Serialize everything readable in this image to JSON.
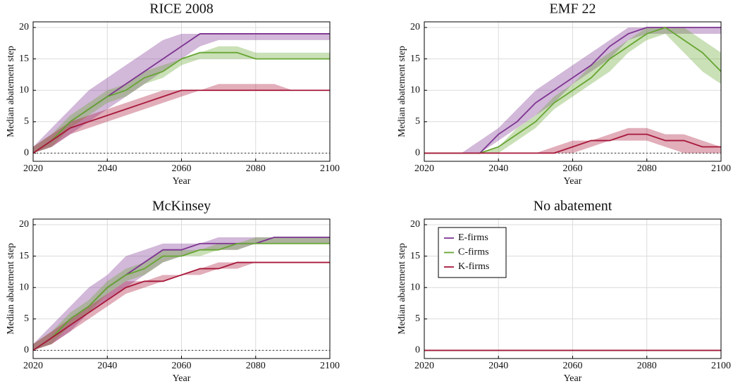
{
  "chart_data": [
    {
      "type": "line",
      "title": "RICE 2008",
      "x_label": "Year",
      "y_label": "Median abatement step",
      "x": [
        2020,
        2025,
        2030,
        2035,
        2040,
        2045,
        2050,
        2055,
        2060,
        2065,
        2070,
        2075,
        2080,
        2085,
        2090,
        2095,
        2100
      ],
      "xlim": [
        2020,
        2100
      ],
      "xticks": [
        2020,
        2040,
        2060,
        2080,
        2100
      ],
      "ylim": [
        -1.3,
        20.9
      ],
      "yticks": [
        0,
        5,
        10,
        15,
        20
      ],
      "grid": true,
      "zero_line": true,
      "series": [
        {
          "name": "E-firms",
          "color": "#7d3591",
          "values": [
            0,
            2,
            5,
            7,
            9,
            11,
            13,
            15,
            17,
            19,
            19,
            19,
            19,
            19,
            19,
            19,
            19
          ],
          "lower": [
            0,
            1,
            3,
            5,
            7,
            9,
            11,
            13,
            15,
            17,
            18,
            18,
            18,
            18,
            18,
            18,
            18
          ],
          "upper": [
            1,
            4,
            7,
            10,
            12,
            14,
            16,
            18,
            19,
            19,
            19,
            19,
            19,
            19,
            19,
            19,
            19
          ]
        },
        {
          "name": "C-firms",
          "color": "#66a532",
          "values": [
            0,
            2,
            5,
            7,
            9,
            10,
            12,
            13,
            15,
            16,
            16,
            16,
            15,
            15,
            15,
            15,
            15
          ],
          "lower": [
            0,
            1,
            4,
            6,
            8,
            9,
            11,
            12,
            14,
            15,
            15,
            15,
            15,
            15,
            15,
            15,
            15
          ],
          "upper": [
            1,
            3,
            6,
            8,
            10,
            11,
            13,
            14,
            15,
            16,
            17,
            17,
            16,
            16,
            16,
            16,
            16
          ]
        },
        {
          "name": "K-firms",
          "color": "#a8173a",
          "values": [
            0,
            2,
            4,
            5,
            6,
            7,
            8,
            9,
            10,
            10,
            10,
            10,
            10,
            10,
            10,
            10,
            10
          ],
          "lower": [
            0,
            1,
            3,
            4,
            5,
            6,
            7,
            8,
            9,
            10,
            10,
            10,
            10,
            10,
            10,
            10,
            10
          ],
          "upper": [
            1,
            3,
            5,
            6,
            7,
            8,
            9,
            10,
            10,
            10,
            11,
            11,
            11,
            11,
            10,
            10,
            10
          ]
        }
      ]
    },
    {
      "type": "line",
      "title": "EMF 22",
      "x_label": "Year",
      "y_label": "Median abatement step",
      "x": [
        2020,
        2025,
        2030,
        2035,
        2040,
        2045,
        2050,
        2055,
        2060,
        2065,
        2070,
        2075,
        2080,
        2085,
        2090,
        2095,
        2100
      ],
      "xlim": [
        2020,
        2100
      ],
      "xticks": [
        2020,
        2040,
        2060,
        2080,
        2100
      ],
      "ylim": [
        -1.3,
        20.9
      ],
      "yticks": [
        0,
        5,
        10,
        15,
        20
      ],
      "grid": true,
      "zero_line": true,
      "series": [
        {
          "name": "E-firms",
          "color": "#7d3591",
          "values": [
            0,
            0,
            0,
            0,
            3,
            5,
            8,
            10,
            12,
            14,
            17,
            19,
            20,
            20,
            20,
            20,
            20
          ],
          "lower": [
            0,
            0,
            0,
            0,
            2,
            4,
            6,
            8,
            11,
            13,
            15,
            18,
            19,
            19,
            19,
            19,
            19
          ],
          "upper": [
            0,
            0,
            0,
            2,
            4,
            7,
            10,
            12,
            14,
            16,
            18,
            20,
            20,
            20,
            20,
            20,
            20
          ]
        },
        {
          "name": "C-firms",
          "color": "#66a532",
          "values": [
            0,
            0,
            0,
            0,
            1,
            3,
            5,
            8,
            10,
            12,
            15,
            17,
            19,
            20,
            18,
            16,
            13
          ],
          "lower": [
            0,
            0,
            0,
            0,
            0,
            2,
            4,
            7,
            9,
            11,
            13,
            16,
            18,
            19,
            16,
            13,
            11
          ],
          "upper": [
            0,
            0,
            0,
            0,
            1,
            4,
            6,
            9,
            11,
            14,
            16,
            18,
            20,
            20,
            20,
            18,
            16
          ]
        },
        {
          "name": "K-firms",
          "color": "#a8173a",
          "values": [
            0,
            0,
            0,
            0,
            0,
            0,
            0,
            0,
            1,
            2,
            2,
            3,
            3,
            2,
            2,
            1,
            1
          ],
          "lower": [
            0,
            0,
            0,
            0,
            0,
            0,
            0,
            0,
            0,
            1,
            2,
            2,
            2,
            1,
            0,
            0,
            0
          ],
          "upper": [
            0,
            0,
            0,
            0,
            0,
            0,
            0,
            1,
            2,
            2,
            3,
            4,
            4,
            3,
            3,
            2,
            1
          ]
        }
      ]
    },
    {
      "type": "line",
      "title": "McKinsey",
      "x_label": "Year",
      "y_label": "Median abatement step",
      "x": [
        2020,
        2025,
        2030,
        2035,
        2040,
        2045,
        2050,
        2055,
        2060,
        2065,
        2070,
        2075,
        2080,
        2085,
        2090,
        2095,
        2100
      ],
      "xlim": [
        2020,
        2100
      ],
      "xticks": [
        2020,
        2040,
        2060,
        2080,
        2100
      ],
      "ylim": [
        -1.3,
        20.9
      ],
      "yticks": [
        0,
        5,
        10,
        15,
        20
      ],
      "grid": true,
      "zero_line": true,
      "series": [
        {
          "name": "E-firms",
          "color": "#7d3591",
          "values": [
            0,
            2,
            5,
            7,
            10,
            12,
            14,
            16,
            16,
            17,
            17,
            17,
            17,
            18,
            18,
            18,
            18
          ],
          "lower": [
            0,
            1,
            3,
            6,
            8,
            10,
            12,
            14,
            15,
            16,
            16,
            16,
            17,
            17,
            17,
            17,
            17
          ],
          "upper": [
            1,
            4,
            7,
            10,
            12,
            15,
            16,
            17,
            17,
            17,
            18,
            18,
            18,
            18,
            18,
            18,
            18
          ]
        },
        {
          "name": "C-firms",
          "color": "#66a532",
          "values": [
            0,
            2,
            5,
            7,
            10,
            12,
            13,
            15,
            15,
            16,
            16,
            17,
            17,
            17,
            17,
            17,
            17
          ],
          "lower": [
            0,
            1,
            4,
            6,
            9,
            11,
            12,
            14,
            15,
            15,
            16,
            16,
            17,
            17,
            17,
            17,
            17
          ],
          "upper": [
            1,
            3,
            6,
            8,
            11,
            13,
            14,
            16,
            16,
            16,
            17,
            17,
            18,
            18,
            18,
            18,
            18
          ]
        },
        {
          "name": "K-firms",
          "color": "#a8173a",
          "values": [
            0,
            2,
            4,
            6,
            8,
            10,
            11,
            11,
            12,
            13,
            13,
            14,
            14,
            14,
            14,
            14,
            14
          ],
          "lower": [
            0,
            1,
            3,
            5,
            7,
            9,
            10,
            11,
            12,
            12,
            13,
            13,
            14,
            14,
            14,
            14,
            14
          ],
          "upper": [
            1,
            3,
            5,
            7,
            9,
            11,
            11,
            12,
            12,
            13,
            14,
            14,
            14,
            14,
            14,
            14,
            14
          ]
        }
      ]
    },
    {
      "type": "line",
      "title": "No abatement",
      "x_label": "Year",
      "y_label": "Median abatement step",
      "x": [
        2020,
        2025,
        2030,
        2035,
        2040,
        2045,
        2050,
        2055,
        2060,
        2065,
        2070,
        2075,
        2080,
        2085,
        2090,
        2095,
        2100
      ],
      "xlim": [
        2020,
        2100
      ],
      "xticks": [
        2020,
        2040,
        2060,
        2080,
        2100
      ],
      "ylim": [
        -1.3,
        20.9
      ],
      "yticks": [
        0,
        5,
        10,
        15,
        20
      ],
      "grid": true,
      "zero_line": true,
      "legend": "upper left",
      "series": [
        {
          "name": "E-firms",
          "color": "#7d3591",
          "values": [
            0,
            0,
            0,
            0,
            0,
            0,
            0,
            0,
            0,
            0,
            0,
            0,
            0,
            0,
            0,
            0,
            0
          ]
        },
        {
          "name": "C-firms",
          "color": "#66a532",
          "values": [
            0,
            0,
            0,
            0,
            0,
            0,
            0,
            0,
            0,
            0,
            0,
            0,
            0,
            0,
            0,
            0,
            0
          ]
        },
        {
          "name": "K-firms",
          "color": "#a8173a",
          "values": [
            0,
            0,
            0,
            0,
            0,
            0,
            0,
            0,
            0,
            0,
            0,
            0,
            0,
            0,
            0,
            0,
            0
          ]
        }
      ]
    }
  ]
}
